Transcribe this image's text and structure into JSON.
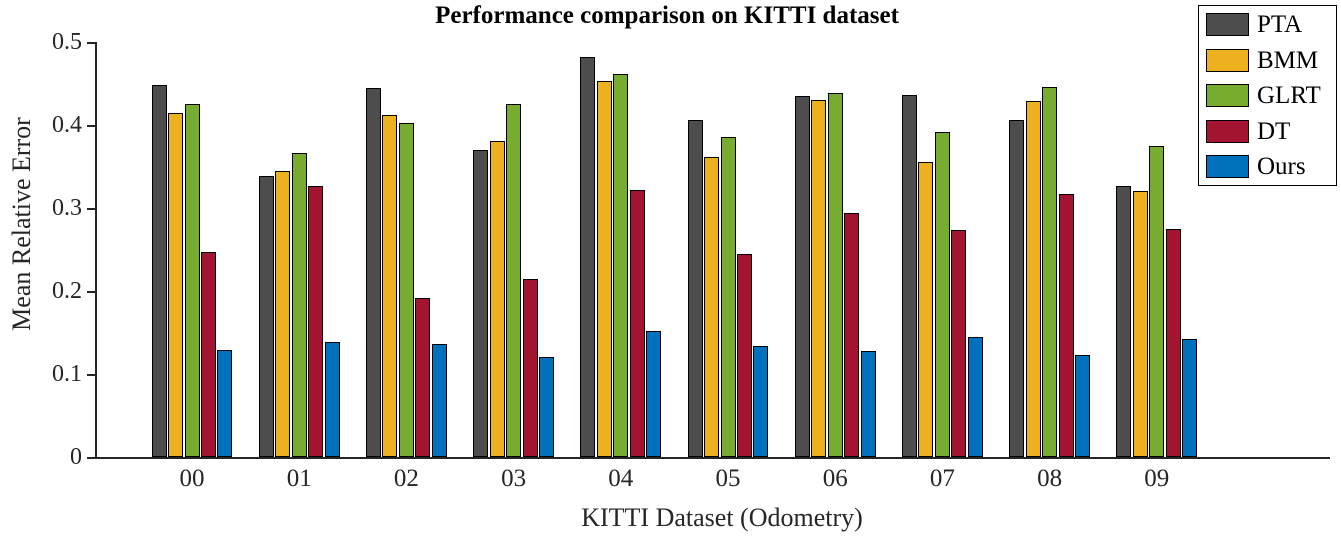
{
  "chart_data": {
    "type": "bar",
    "title": "Performance comparison on KITTI dataset",
    "xlabel": "KITTI Dataset (Odometry)",
    "ylabel": "Mean Relative Error",
    "categories": [
      "00",
      "01",
      "02",
      "03",
      "04",
      "05",
      "06",
      "07",
      "08",
      "09"
    ],
    "series": [
      {
        "name": "PTA",
        "color": "#4D4D4D",
        "values": [
          0.448,
          0.338,
          0.445,
          0.37,
          0.482,
          0.406,
          0.435,
          0.436,
          0.406,
          0.327
        ]
      },
      {
        "name": "BMM",
        "color": "#EDB120",
        "values": [
          0.415,
          0.344,
          0.412,
          0.381,
          0.453,
          0.361,
          0.43,
          0.356,
          0.429,
          0.321
        ]
      },
      {
        "name": "GLRT",
        "color": "#77AC30",
        "values": [
          0.425,
          0.366,
          0.403,
          0.425,
          0.462,
          0.385,
          0.438,
          0.392,
          0.446,
          0.375
        ]
      },
      {
        "name": "DT",
        "color": "#A2142F",
        "values": [
          0.247,
          0.327,
          0.192,
          0.215,
          0.322,
          0.245,
          0.294,
          0.274,
          0.317,
          0.275
        ]
      },
      {
        "name": "Ours",
        "color": "#0072BD",
        "values": [
          0.129,
          0.138,
          0.136,
          0.12,
          0.152,
          0.134,
          0.128,
          0.144,
          0.123,
          0.142
        ]
      }
    ],
    "ylim": [
      0,
      0.5
    ],
    "yticks": [
      0,
      0.1,
      0.2,
      0.3,
      0.4,
      0.5
    ],
    "grid": false,
    "legend_position": "top-right",
    "bar_edge_color": "#000000",
    "axis_color": "#262626",
    "background_color": "#FFFFFF"
  }
}
